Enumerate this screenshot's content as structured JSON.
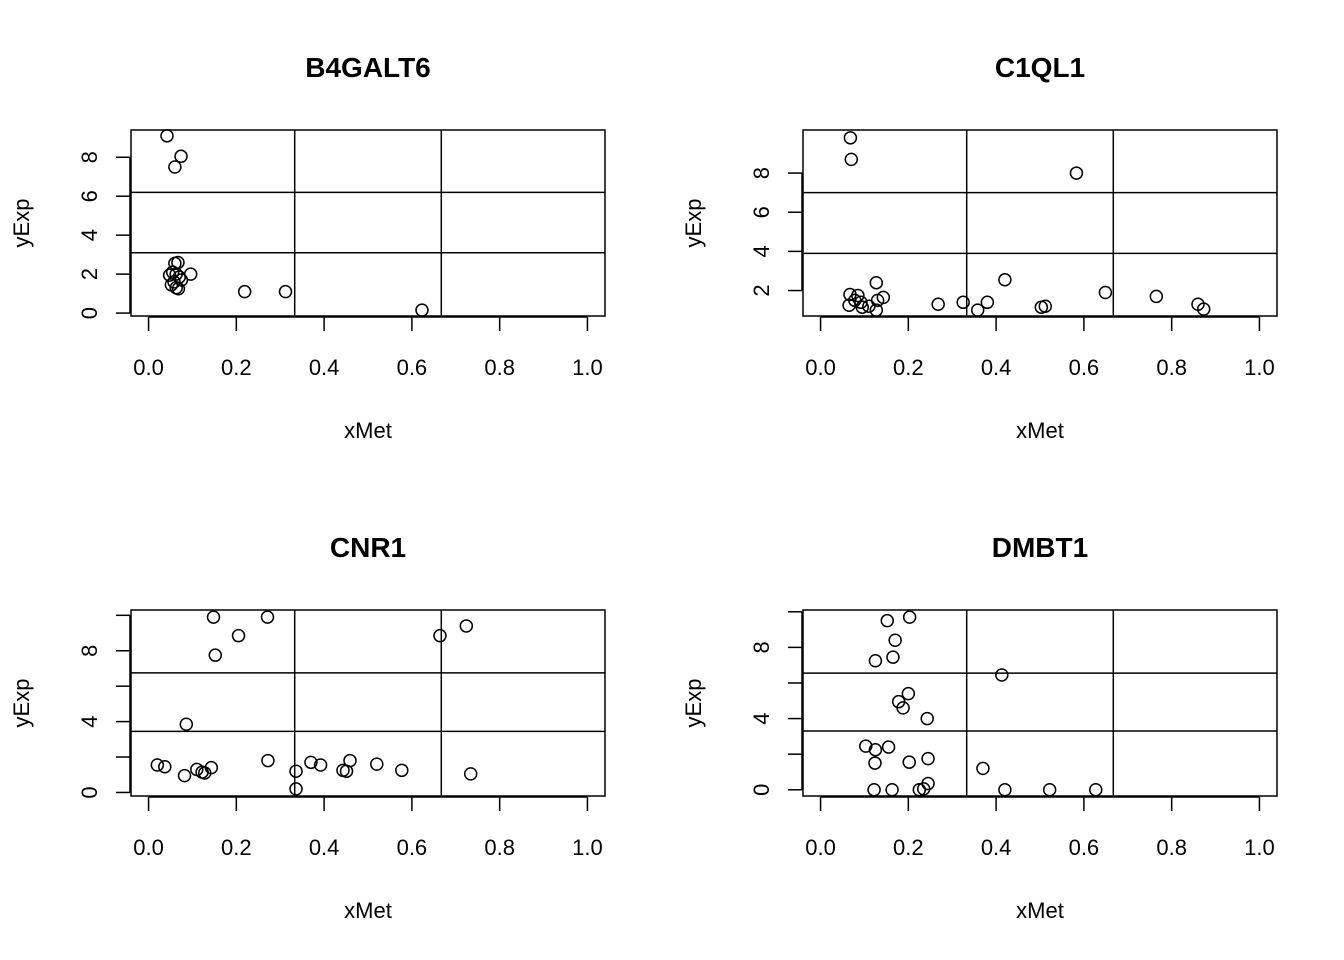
{
  "colors": {
    "ink": "#000000",
    "background": "#ffffff"
  },
  "chart_data": [
    {
      "type": "scatter",
      "title": "B4GALT6",
      "xlabel": "xMet",
      "ylabel": "yExp",
      "xlim": [
        -0.04,
        1.04
      ],
      "ylim": [
        -0.15,
        9.4
      ],
      "xticks": [
        0,
        0.2,
        0.4,
        0.6,
        0.8,
        1
      ],
      "xtick_labels": [
        "0.0",
        "0.2",
        "0.4",
        "0.6",
        "0.8",
        "1.0"
      ],
      "yticks": [
        0,
        2,
        4,
        6,
        8
      ],
      "ytick_labels": [
        "0",
        "2",
        "4",
        "6",
        "8"
      ],
      "vlines": [
        0.333,
        0.667
      ],
      "hlines": [
        3.1,
        6.2
      ],
      "grid": false,
      "points": [
        {
          "x": 0.042,
          "y": 9.1
        },
        {
          "x": 0.074,
          "y": 8.05
        },
        {
          "x": 0.06,
          "y": 7.5
        },
        {
          "x": 0.06,
          "y": 2.55
        },
        {
          "x": 0.067,
          "y": 2.6
        },
        {
          "x": 0.055,
          "y": 2.1
        },
        {
          "x": 0.063,
          "y": 2.0
        },
        {
          "x": 0.07,
          "y": 1.85
        },
        {
          "x": 0.075,
          "y": 1.7
        },
        {
          "x": 0.058,
          "y": 1.6
        },
        {
          "x": 0.052,
          "y": 1.45
        },
        {
          "x": 0.063,
          "y": 1.3
        },
        {
          "x": 0.068,
          "y": 1.25
        },
        {
          "x": 0.096,
          "y": 2.0
        },
        {
          "x": 0.048,
          "y": 1.95
        },
        {
          "x": 0.219,
          "y": 1.1
        },
        {
          "x": 0.312,
          "y": 1.1
        },
        {
          "x": 0.623,
          "y": 0.15
        }
      ]
    },
    {
      "type": "scatter",
      "title": "C1QL1",
      "xlabel": "xMet",
      "ylabel": "yExp",
      "xlim": [
        -0.04,
        1.04
      ],
      "ylim": [
        0.7,
        10.2
      ],
      "xticks": [
        0,
        0.2,
        0.4,
        0.6,
        0.8,
        1
      ],
      "xtick_labels": [
        "0.0",
        "0.2",
        "0.4",
        "0.6",
        "0.8",
        "1.0"
      ],
      "yticks": [
        2,
        4,
        6,
        8
      ],
      "ytick_labels": [
        "2",
        "4",
        "6",
        "8"
      ],
      "vlines": [
        0.333,
        0.667
      ],
      "hlines": [
        3.9,
        7.0
      ],
      "grid": false,
      "points": [
        {
          "x": 0.068,
          "y": 9.8
        },
        {
          "x": 0.07,
          "y": 8.7
        },
        {
          "x": 0.583,
          "y": 8.0
        },
        {
          "x": 0.067,
          "y": 1.8
        },
        {
          "x": 0.085,
          "y": 1.75
        },
        {
          "x": 0.078,
          "y": 1.5
        },
        {
          "x": 0.092,
          "y": 1.4
        },
        {
          "x": 0.065,
          "y": 1.25
        },
        {
          "x": 0.095,
          "y": 1.15
        },
        {
          "x": 0.11,
          "y": 1.2
        },
        {
          "x": 0.127,
          "y": 1.0
        },
        {
          "x": 0.127,
          "y": 2.4
        },
        {
          "x": 0.13,
          "y": 1.5
        },
        {
          "x": 0.143,
          "y": 1.65
        },
        {
          "x": 0.268,
          "y": 1.3
        },
        {
          "x": 0.325,
          "y": 1.4
        },
        {
          "x": 0.358,
          "y": 1.0
        },
        {
          "x": 0.38,
          "y": 1.4
        },
        {
          "x": 0.42,
          "y": 2.55
        },
        {
          "x": 0.503,
          "y": 1.15
        },
        {
          "x": 0.512,
          "y": 1.2
        },
        {
          "x": 0.649,
          "y": 1.9
        },
        {
          "x": 0.765,
          "y": 1.7
        },
        {
          "x": 0.86,
          "y": 1.3
        },
        {
          "x": 0.873,
          "y": 1.05
        }
      ]
    },
    {
      "type": "scatter",
      "title": "CNR1",
      "xlabel": "xMet",
      "ylabel": "yExp",
      "xlim": [
        -0.04,
        1.04
      ],
      "ylim": [
        -0.2,
        10.3
      ],
      "xticks": [
        0,
        0.2,
        0.4,
        0.6,
        0.8,
        1
      ],
      "xtick_labels": [
        "0.0",
        "0.2",
        "0.4",
        "0.6",
        "0.8",
        "1.0"
      ],
      "yticks": [
        0,
        2,
        4,
        6,
        8,
        10
      ],
      "ytick_labels": [
        "0",
        "",
        "4",
        "",
        "8",
        ""
      ],
      "vlines": [
        0.333,
        0.667
      ],
      "hlines": [
        3.45,
        6.75
      ],
      "grid": false,
      "points": [
        {
          "x": 0.148,
          "y": 9.9
        },
        {
          "x": 0.271,
          "y": 9.9
        },
        {
          "x": 0.205,
          "y": 8.85
        },
        {
          "x": 0.152,
          "y": 7.75
        },
        {
          "x": 0.664,
          "y": 8.85
        },
        {
          "x": 0.724,
          "y": 9.4
        },
        {
          "x": 0.086,
          "y": 3.85
        },
        {
          "x": 0.02,
          "y": 1.55
        },
        {
          "x": 0.037,
          "y": 1.45
        },
        {
          "x": 0.082,
          "y": 0.95
        },
        {
          "x": 0.11,
          "y": 1.3
        },
        {
          "x": 0.122,
          "y": 1.15
        },
        {
          "x": 0.128,
          "y": 1.1
        },
        {
          "x": 0.143,
          "y": 1.4
        },
        {
          "x": 0.272,
          "y": 1.8
        },
        {
          "x": 0.336,
          "y": 1.2
        },
        {
          "x": 0.336,
          "y": 0.2
        },
        {
          "x": 0.37,
          "y": 1.7
        },
        {
          "x": 0.392,
          "y": 1.55
        },
        {
          "x": 0.443,
          "y": 1.25
        },
        {
          "x": 0.451,
          "y": 1.2
        },
        {
          "x": 0.459,
          "y": 1.8
        },
        {
          "x": 0.52,
          "y": 1.6
        },
        {
          "x": 0.577,
          "y": 1.25
        },
        {
          "x": 0.734,
          "y": 1.05
        }
      ]
    },
    {
      "type": "scatter",
      "title": "DMBT1",
      "xlabel": "xMet",
      "ylabel": "yExp",
      "xlim": [
        -0.04,
        1.04
      ],
      "ylim": [
        -0.35,
        10.1
      ],
      "xticks": [
        0,
        0.2,
        0.4,
        0.6,
        0.8,
        1
      ],
      "xtick_labels": [
        "0.0",
        "0.2",
        "0.4",
        "0.6",
        "0.8",
        "1.0"
      ],
      "yticks": [
        0,
        2,
        4,
        6,
        8,
        10
      ],
      "ytick_labels": [
        "0",
        "",
        "4",
        "",
        "8",
        ""
      ],
      "vlines": [
        0.333,
        0.667
      ],
      "hlines": [
        3.3,
        6.55
      ],
      "grid": false,
      "points": [
        {
          "x": 0.203,
          "y": 9.7
        },
        {
          "x": 0.152,
          "y": 9.5
        },
        {
          "x": 0.17,
          "y": 8.4
        },
        {
          "x": 0.165,
          "y": 7.45
        },
        {
          "x": 0.125,
          "y": 7.25
        },
        {
          "x": 0.413,
          "y": 6.45
        },
        {
          "x": 0.2,
          "y": 5.4
        },
        {
          "x": 0.178,
          "y": 4.95
        },
        {
          "x": 0.188,
          "y": 4.6
        },
        {
          "x": 0.243,
          "y": 4.0
        },
        {
          "x": 0.103,
          "y": 2.45
        },
        {
          "x": 0.125,
          "y": 2.25
        },
        {
          "x": 0.155,
          "y": 2.4
        },
        {
          "x": 0.124,
          "y": 1.5
        },
        {
          "x": 0.202,
          "y": 1.55
        },
        {
          "x": 0.245,
          "y": 1.75
        },
        {
          "x": 0.37,
          "y": 1.2
        },
        {
          "x": 0.245,
          "y": 0.35
        },
        {
          "x": 0.122,
          "y": 0.0
        },
        {
          "x": 0.163,
          "y": 0.0
        },
        {
          "x": 0.225,
          "y": 0.0
        },
        {
          "x": 0.235,
          "y": 0.05
        },
        {
          "x": 0.42,
          "y": 0.0
        },
        {
          "x": 0.522,
          "y": 0.0
        },
        {
          "x": 0.627,
          "y": 0.0
        }
      ]
    }
  ]
}
